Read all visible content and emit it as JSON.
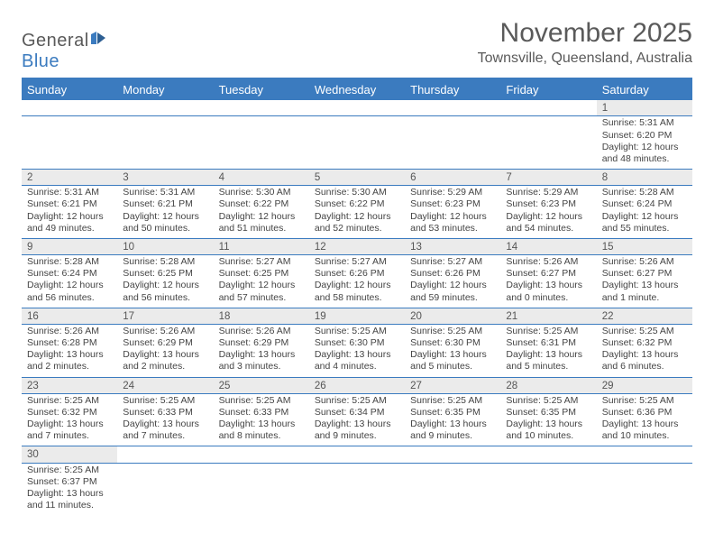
{
  "logo": {
    "text_general": "General",
    "text_blue": "Blue"
  },
  "title": "November 2025",
  "location": "Townsville, Queensland, Australia",
  "colors": {
    "accent": "#3b7bbf",
    "header_text": "#5a5a5a",
    "daynum_bg": "#ebebeb",
    "body_text": "#444444"
  },
  "day_headers": [
    "Sunday",
    "Monday",
    "Tuesday",
    "Wednesday",
    "Thursday",
    "Friday",
    "Saturday"
  ],
  "weeks": [
    [
      null,
      null,
      null,
      null,
      null,
      null,
      {
        "n": "1",
        "sr": "5:31 AM",
        "ss": "6:20 PM",
        "dl": "12 hours and 48 minutes."
      }
    ],
    [
      {
        "n": "2",
        "sr": "5:31 AM",
        "ss": "6:21 PM",
        "dl": "12 hours and 49 minutes."
      },
      {
        "n": "3",
        "sr": "5:31 AM",
        "ss": "6:21 PM",
        "dl": "12 hours and 50 minutes."
      },
      {
        "n": "4",
        "sr": "5:30 AM",
        "ss": "6:22 PM",
        "dl": "12 hours and 51 minutes."
      },
      {
        "n": "5",
        "sr": "5:30 AM",
        "ss": "6:22 PM",
        "dl": "12 hours and 52 minutes."
      },
      {
        "n": "6",
        "sr": "5:29 AM",
        "ss": "6:23 PM",
        "dl": "12 hours and 53 minutes."
      },
      {
        "n": "7",
        "sr": "5:29 AM",
        "ss": "6:23 PM",
        "dl": "12 hours and 54 minutes."
      },
      {
        "n": "8",
        "sr": "5:28 AM",
        "ss": "6:24 PM",
        "dl": "12 hours and 55 minutes."
      }
    ],
    [
      {
        "n": "9",
        "sr": "5:28 AM",
        "ss": "6:24 PM",
        "dl": "12 hours and 56 minutes."
      },
      {
        "n": "10",
        "sr": "5:28 AM",
        "ss": "6:25 PM",
        "dl": "12 hours and 56 minutes."
      },
      {
        "n": "11",
        "sr": "5:27 AM",
        "ss": "6:25 PM",
        "dl": "12 hours and 57 minutes."
      },
      {
        "n": "12",
        "sr": "5:27 AM",
        "ss": "6:26 PM",
        "dl": "12 hours and 58 minutes."
      },
      {
        "n": "13",
        "sr": "5:27 AM",
        "ss": "6:26 PM",
        "dl": "12 hours and 59 minutes."
      },
      {
        "n": "14",
        "sr": "5:26 AM",
        "ss": "6:27 PM",
        "dl": "13 hours and 0 minutes."
      },
      {
        "n": "15",
        "sr": "5:26 AM",
        "ss": "6:27 PM",
        "dl": "13 hours and 1 minute."
      }
    ],
    [
      {
        "n": "16",
        "sr": "5:26 AM",
        "ss": "6:28 PM",
        "dl": "13 hours and 2 minutes."
      },
      {
        "n": "17",
        "sr": "5:26 AM",
        "ss": "6:29 PM",
        "dl": "13 hours and 2 minutes."
      },
      {
        "n": "18",
        "sr": "5:26 AM",
        "ss": "6:29 PM",
        "dl": "13 hours and 3 minutes."
      },
      {
        "n": "19",
        "sr": "5:25 AM",
        "ss": "6:30 PM",
        "dl": "13 hours and 4 minutes."
      },
      {
        "n": "20",
        "sr": "5:25 AM",
        "ss": "6:30 PM",
        "dl": "13 hours and 5 minutes."
      },
      {
        "n": "21",
        "sr": "5:25 AM",
        "ss": "6:31 PM",
        "dl": "13 hours and 5 minutes."
      },
      {
        "n": "22",
        "sr": "5:25 AM",
        "ss": "6:32 PM",
        "dl": "13 hours and 6 minutes."
      }
    ],
    [
      {
        "n": "23",
        "sr": "5:25 AM",
        "ss": "6:32 PM",
        "dl": "13 hours and 7 minutes."
      },
      {
        "n": "24",
        "sr": "5:25 AM",
        "ss": "6:33 PM",
        "dl": "13 hours and 7 minutes."
      },
      {
        "n": "25",
        "sr": "5:25 AM",
        "ss": "6:33 PM",
        "dl": "13 hours and 8 minutes."
      },
      {
        "n": "26",
        "sr": "5:25 AM",
        "ss": "6:34 PM",
        "dl": "13 hours and 9 minutes."
      },
      {
        "n": "27",
        "sr": "5:25 AM",
        "ss": "6:35 PM",
        "dl": "13 hours and 9 minutes."
      },
      {
        "n": "28",
        "sr": "5:25 AM",
        "ss": "6:35 PM",
        "dl": "13 hours and 10 minutes."
      },
      {
        "n": "29",
        "sr": "5:25 AM",
        "ss": "6:36 PM",
        "dl": "13 hours and 10 minutes."
      }
    ],
    [
      {
        "n": "30",
        "sr": "5:25 AM",
        "ss": "6:37 PM",
        "dl": "13 hours and 11 minutes."
      },
      null,
      null,
      null,
      null,
      null,
      null
    ]
  ],
  "labels": {
    "sunrise": "Sunrise: ",
    "sunset": "Sunset: ",
    "daylight": "Daylight: "
  }
}
